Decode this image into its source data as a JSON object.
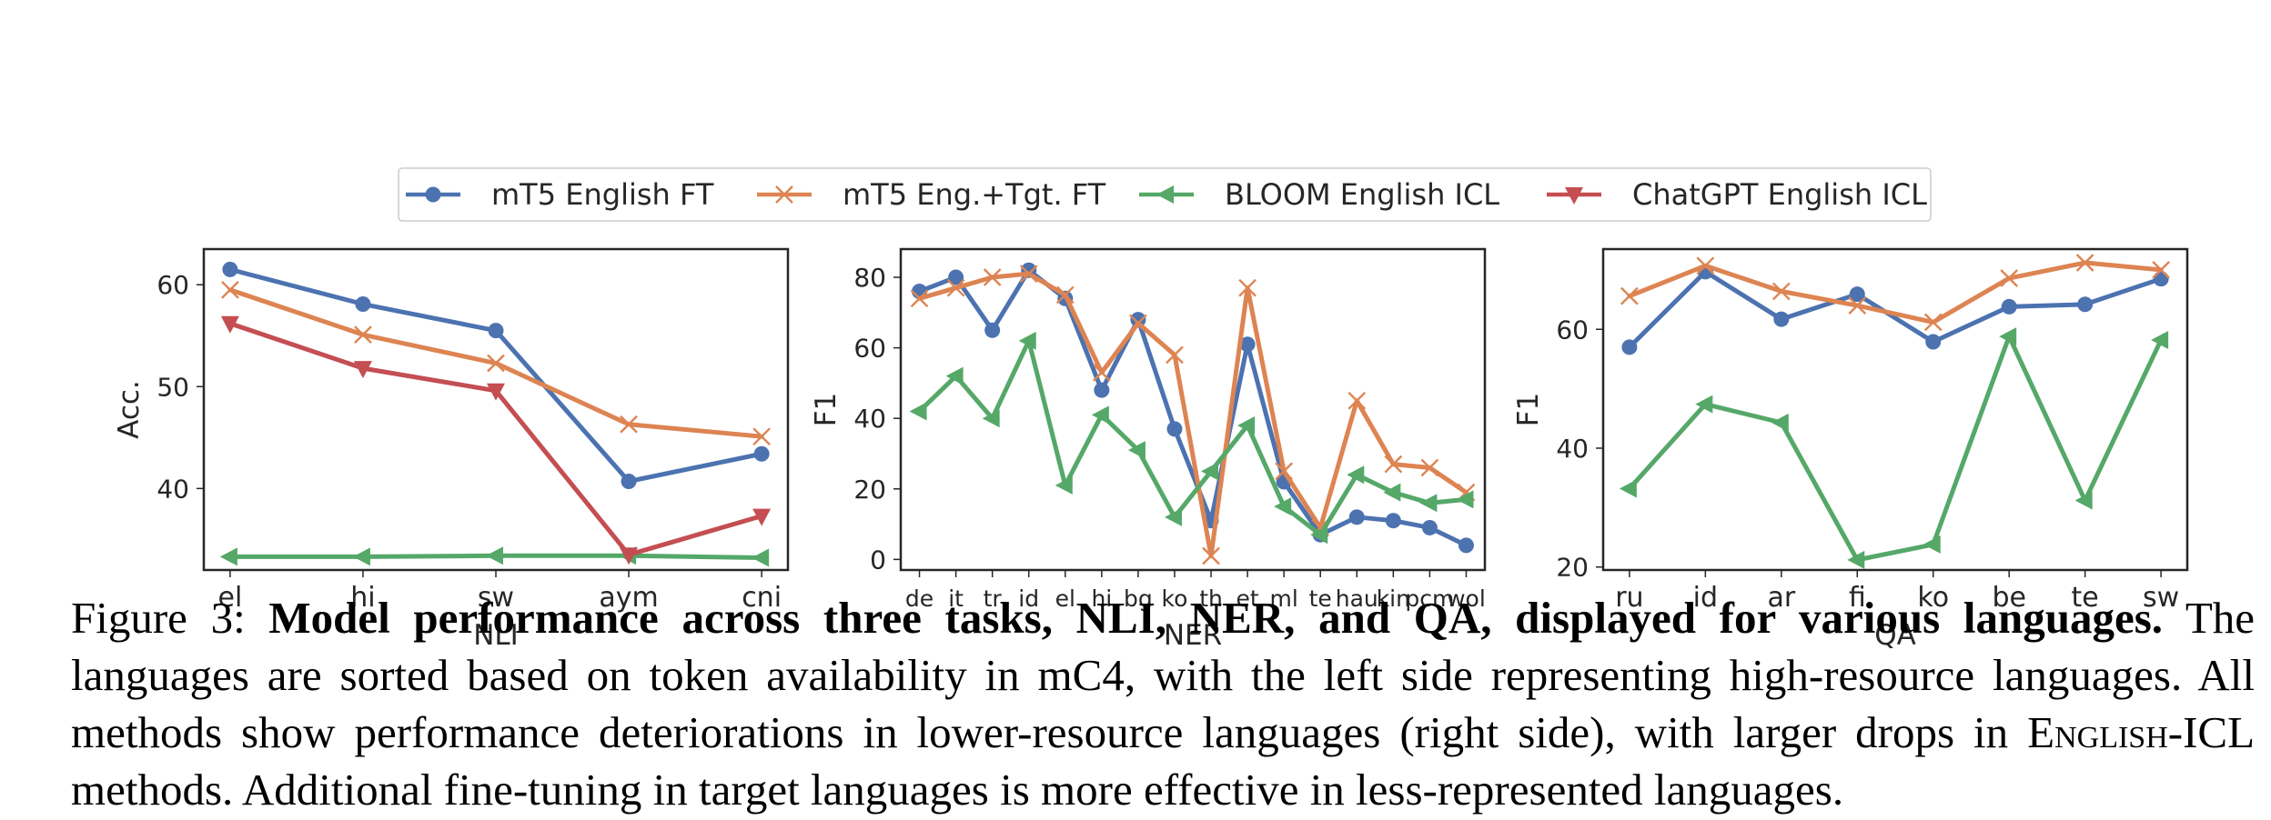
{
  "legend": {
    "placement": "top-center",
    "entries": [
      {
        "name": "mT5 English FT",
        "color": "#4c72b0",
        "marker": "circle"
      },
      {
        "name": "mT5 Eng.+Tgt. FT",
        "color": "#dd8452",
        "marker": "x"
      },
      {
        "name": "BLOOM English ICL",
        "color": "#55a868",
        "marker": "triangle-left"
      },
      {
        "name": "ChatGPT English ICL",
        "color": "#c44e52",
        "marker": "triangle-down"
      }
    ]
  },
  "chart_data": [
    {
      "type": "line",
      "xlabel": "NLI",
      "ylabel": "Acc.",
      "categories": [
        "el",
        "hi",
        "sw",
        "aym",
        "cni"
      ],
      "ylim": [
        32,
        63.5
      ],
      "yticks": [
        40,
        50,
        60
      ],
      "grid": false,
      "series": [
        {
          "name": "mT5 English FT",
          "values": [
            61.5,
            58.1,
            55.5,
            40.7,
            43.4
          ]
        },
        {
          "name": "mT5 Eng.+Tgt. FT",
          "values": [
            59.5,
            55.1,
            52.3,
            46.3,
            45.1
          ]
        },
        {
          "name": "BLOOM English ICL",
          "values": [
            33.3,
            33.3,
            33.4,
            33.4,
            33.2
          ]
        },
        {
          "name": "ChatGPT English ICL",
          "values": [
            56.2,
            51.8,
            49.6,
            33.5,
            37.3
          ]
        }
      ]
    },
    {
      "type": "line",
      "xlabel": "NER",
      "ylabel": "F1",
      "categories": [
        "de",
        "it",
        "tr",
        "id",
        "el",
        "hi",
        "bg",
        "ko",
        "th",
        "et",
        "ml",
        "te",
        "hau",
        "kin",
        "pcm",
        "wol"
      ],
      "ylim": [
        -3,
        88
      ],
      "yticks": [
        0,
        20,
        40,
        60,
        80
      ],
      "grid": false,
      "series": [
        {
          "name": "mT5 English FT",
          "values": [
            76,
            80,
            65,
            82,
            74,
            48,
            68,
            37,
            11,
            61,
            22,
            7,
            12,
            11,
            9,
            4
          ]
        },
        {
          "name": "mT5 Eng.+Tgt. FT",
          "values": [
            74,
            77,
            80,
            81,
            75,
            53,
            67,
            58,
            1,
            77,
            25,
            9,
            45,
            27,
            26,
            19
          ]
        },
        {
          "name": "BLOOM English ICL",
          "values": [
            42,
            52,
            40,
            62,
            21,
            41,
            31,
            12,
            25,
            38,
            15,
            7,
            24,
            19,
            16,
            17
          ]
        }
      ]
    },
    {
      "type": "line",
      "xlabel": "QA",
      "ylabel": "F1",
      "categories": [
        "ru",
        "id",
        "ar",
        "fi",
        "ko",
        "be",
        "te",
        "sw"
      ],
      "ylim": [
        19.5,
        73.5
      ],
      "yticks": [
        20,
        40,
        60
      ],
      "grid": false,
      "series": [
        {
          "name": "mT5 English FT",
          "values": [
            57,
            69.7,
            61.7,
            65.9,
            57.9,
            63.8,
            64.2,
            68.5
          ]
        },
        {
          "name": "mT5 Eng.+Tgt. FT",
          "values": [
            65.6,
            70.7,
            66.4,
            64,
            61.2,
            68.6,
            71.2,
            70
          ]
        },
        {
          "name": "BLOOM English ICL",
          "values": [
            33.2,
            47.4,
            44.3,
            21.2,
            23.8,
            58.8,
            31.2,
            58.2
          ]
        }
      ]
    }
  ],
  "caption": {
    "label": "Figure 3: ",
    "bold": "Model performance across three tasks, NLI, NER, and QA, displayed for various languages.",
    "text1": " The languages are sorted based on token availability in mC4, with the left side representing high-resource languages. All methods show performance deteriorations in lower-resource languages (right side), with larger drops in ",
    "smallcaps": "English-ICL",
    "text2": " methods. Additional fine-tuning in target languages is more effective in less-represented languages."
  }
}
